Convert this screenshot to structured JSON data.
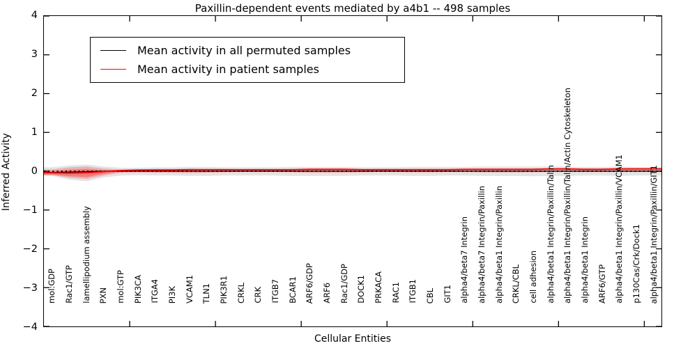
{
  "figure": {
    "title": "Paxillin-dependent events mediated by a4b1 -- 498 samples",
    "xlabel": "Cellular Entities",
    "ylabel": "Inferred Activity"
  },
  "legend": {
    "position": "upper left",
    "entries": [
      {
        "label": "Mean activity in all permuted samples",
        "color": "#000000"
      },
      {
        "label": "Mean activity in patient samples",
        "color": "#ff0000"
      }
    ]
  },
  "axis": {
    "ylim": [
      -4,
      4
    ],
    "xlim": [
      0,
      36
    ],
    "y_tick_labels": [
      "4",
      "3",
      "2",
      "1",
      "0",
      "−1",
      "−2",
      "−3",
      "−4"
    ],
    "y_tick_values": [
      4,
      3,
      2,
      1,
      0,
      -1,
      -2,
      -3,
      -4
    ],
    "x_major_tick_values": [
      5,
      10,
      15,
      20,
      25,
      30,
      35
    ],
    "tick_direction": "in",
    "grid": false
  },
  "chart_data": {
    "type": "line",
    "title": "Paxillin-dependent events mediated by a4b1 -- 498 samples",
    "xlabel": "Cellular Entities",
    "ylabel": "Inferred Activity",
    "ylim": [
      -4,
      4
    ],
    "xlim": [
      0,
      36
    ],
    "legend_position": "upper left",
    "grid": false,
    "categories": [
      "mol:GDP",
      "Rac1/GTP",
      "lamellipodium assembly",
      "PXN",
      "mol:GTP",
      "PIK3CA",
      "ITGA4",
      "PI3K",
      "VCAM1",
      "TLN1",
      "PIK3R1",
      "CRKL",
      "CRK",
      "ITGB7",
      "BCAR1",
      "ARF6/GDP",
      "ARF6",
      "Rac1/GDP",
      "DOCK1",
      "PRKACA",
      "RAC1",
      "ITGB1",
      "CBL",
      "GIT1",
      "alpha4/beta7 Integrin",
      "alpha4/beta7 Integrin/Paxillin",
      "alpha4/beta1 Integrin/Paxillin",
      "CRKL/CBL",
      "cell adhesion",
      "alpha4/beta1 Integrin/Paxillin/Talin",
      "alpha4/beta1 Integrin/Paxillin/Talin/Actin Cytoskeleton",
      "alpha4/beta1 Integrin",
      "ARF6/GTP",
      "alpha4/beta1 Integrin/Paxillin/VCAM1",
      "p130Cas/Crk/Dock1",
      "alpha4/beta1 Integrin/Paxillin/GIT1"
    ],
    "series": [
      {
        "name": "Mean activity in all permuted samples",
        "color": "#000000",
        "style": "solid",
        "values": [
          -0.03,
          -0.02,
          -0.01,
          0,
          0,
          0,
          0,
          0,
          0,
          0,
          0,
          0,
          0,
          0,
          0,
          0,
          0,
          0,
          0,
          0,
          0,
          0,
          0,
          0,
          0,
          0,
          0,
          0,
          0,
          0,
          0,
          0,
          0,
          0,
          0,
          0
        ]
      },
      {
        "name": "Mean activity in patient samples",
        "color": "#ff0000",
        "style": "solid",
        "values": [
          -0.04,
          -0.05,
          -0.04,
          -0.01,
          0.02,
          0.03,
          0.03,
          0.03,
          0.04,
          0.04,
          0.04,
          0.04,
          0.04,
          0.04,
          0.04,
          0.05,
          0.05,
          0.05,
          0.04,
          0.04,
          0.04,
          0.04,
          0.04,
          0.04,
          0.05,
          0.05,
          0.05,
          0.05,
          0.05,
          0.06,
          0.06,
          0.05,
          0.05,
          0.06,
          0.06,
          0.06
        ]
      }
    ],
    "zero_line": {
      "y": 0,
      "style": "dotted",
      "color": "#000000"
    },
    "bands": [
      {
        "name": "permuted-samples-spread",
        "fill": "rgba(120,120,120,0.20)",
        "upper": [
          0.1,
          0.15,
          0.17,
          0.12,
          0.09,
          0.09,
          0.1,
          0.1,
          0.11,
          0.11,
          0.1,
          0.1,
          0.1,
          0.1,
          0.11,
          0.11,
          0.11,
          0.11,
          0.1,
          0.1,
          0.1,
          0.11,
          0.11,
          0.11,
          0.11,
          0.12,
          0.12,
          0.12,
          0.12,
          0.12,
          0.12,
          0.11,
          0.11,
          0.12,
          0.11,
          0.11
        ],
        "lower": [
          -0.12,
          -0.22,
          -0.26,
          -0.16,
          -0.11,
          -0.1,
          -0.11,
          -0.11,
          -0.12,
          -0.12,
          -0.11,
          -0.11,
          -0.11,
          -0.11,
          -0.12,
          -0.12,
          -0.12,
          -0.12,
          -0.11,
          -0.11,
          -0.11,
          -0.12,
          -0.12,
          -0.11,
          -0.11,
          -0.12,
          -0.12,
          -0.12,
          -0.13,
          -0.12,
          -0.12,
          -0.11,
          -0.11,
          -0.12,
          -0.11,
          -0.11
        ]
      },
      {
        "name": "patient-samples-spread-outer",
        "fill": "rgba(255,0,0,0.22)",
        "upper": [
          0.05,
          0.1,
          0.12,
          0.07,
          0.04,
          0.05,
          0.06,
          0.06,
          0.07,
          0.06,
          0.06,
          0.05,
          0.05,
          0.05,
          0.06,
          0.07,
          0.07,
          0.07,
          0.06,
          0.06,
          0.06,
          0.06,
          0.06,
          0.06,
          0.06,
          0.07,
          0.07,
          0.07,
          0.07,
          0.08,
          0.08,
          0.07,
          0.07,
          0.08,
          0.08,
          0.08
        ],
        "lower": [
          -0.1,
          -0.17,
          -0.2,
          -0.11,
          -0.04,
          -0.03,
          -0.04,
          -0.04,
          -0.05,
          -0.04,
          -0.03,
          -0.02,
          -0.02,
          -0.02,
          -0.03,
          -0.04,
          -0.04,
          -0.04,
          -0.03,
          -0.02,
          -0.02,
          -0.03,
          -0.03,
          -0.02,
          -0.02,
          -0.03,
          -0.03,
          -0.03,
          -0.03,
          -0.02,
          -0.02,
          -0.02,
          -0.02,
          -0.02,
          -0.02,
          -0.02
        ]
      },
      {
        "name": "patient-samples-spread-inner",
        "fill": "rgba(255,0,0,0.30)",
        "upper": [
          0.01,
          0.04,
          0.06,
          0.03,
          0.03,
          0.04,
          0.05,
          0.05,
          0.05,
          0.05,
          0.05,
          0.05,
          0.05,
          0.05,
          0.05,
          0.06,
          0.06,
          0.06,
          0.05,
          0.05,
          0.05,
          0.05,
          0.05,
          0.05,
          0.06,
          0.06,
          0.06,
          0.06,
          0.06,
          0.07,
          0.07,
          0.06,
          0.06,
          0.07,
          0.07,
          0.07
        ],
        "lower": [
          -0.09,
          -0.13,
          -0.15,
          -0.07,
          -0.01,
          0.0,
          0.0,
          0.0,
          0.01,
          0.01,
          0.01,
          0.01,
          0.01,
          0.01,
          0.01,
          0.01,
          0.01,
          0.01,
          0.01,
          0.01,
          0.01,
          0.01,
          0.01,
          0.01,
          0.02,
          0.02,
          0.02,
          0.02,
          0.02,
          0.03,
          0.03,
          0.02,
          0.02,
          0.03,
          0.03,
          0.03
        ]
      }
    ]
  }
}
